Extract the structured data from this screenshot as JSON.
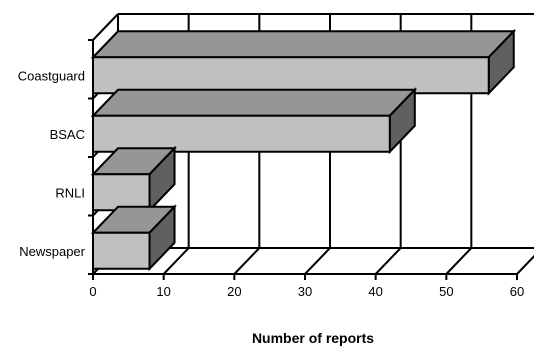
{
  "chart_data": {
    "type": "bar",
    "orientation": "horizontal",
    "style": "3d",
    "categories": [
      "Coastguard",
      "BSAC",
      "RNLI",
      "Newspaper"
    ],
    "values": [
      56,
      42,
      8,
      8
    ],
    "xlabel": "Number of reports",
    "ylabel": "",
    "xlim": [
      0,
      60
    ],
    "xticks": [
      "0",
      "10",
      "20",
      "30",
      "40",
      "50",
      "60"
    ],
    "grid": true,
    "colors": {
      "bar_front": "#c0c0c0",
      "bar_top": "#969696",
      "bar_side": "#606060",
      "grid": "#000000"
    }
  }
}
